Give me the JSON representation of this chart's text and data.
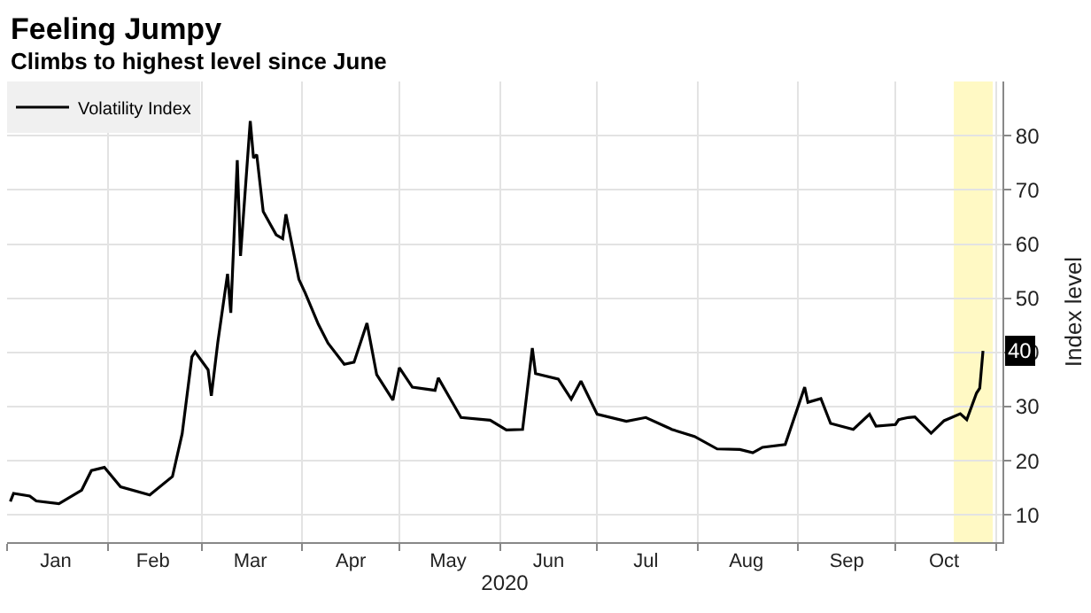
{
  "chart_data": {
    "type": "line",
    "title": "Feeling Jumpy",
    "subtitle": "Climbs to highest level since June",
    "xlabel": "2020",
    "ylabel": "Index level",
    "x": [
      "2020-01-02",
      "2020-01-03",
      "2020-01-08",
      "2020-01-10",
      "2020-01-17",
      "2020-01-24",
      "2020-01-27",
      "2020-01-31",
      "2020-02-05",
      "2020-02-14",
      "2020-02-21",
      "2020-02-24",
      "2020-02-27",
      "2020-02-28",
      "2020-03-03",
      "2020-03-04",
      "2020-03-06",
      "2020-03-09",
      "2020-03-10",
      "2020-03-12",
      "2020-03-13",
      "2020-03-16",
      "2020-03-17",
      "2020-03-18",
      "2020-03-20",
      "2020-03-24",
      "2020-03-26",
      "2020-03-27",
      "2020-03-31",
      "2020-04-02",
      "2020-04-06",
      "2020-04-09",
      "2020-04-14",
      "2020-04-17",
      "2020-04-21",
      "2020-04-24",
      "2020-04-29",
      "2020-05-01",
      "2020-05-05",
      "2020-05-12",
      "2020-05-13",
      "2020-05-20",
      "2020-05-29",
      "2020-06-03",
      "2020-06-08",
      "2020-06-11",
      "2020-06-12",
      "2020-06-19",
      "2020-06-23",
      "2020-06-26",
      "2020-07-01",
      "2020-07-10",
      "2020-07-16",
      "2020-07-23",
      "2020-07-24",
      "2020-07-31",
      "2020-08-07",
      "2020-08-14",
      "2020-08-18",
      "2020-08-21",
      "2020-08-28",
      "2020-09-03",
      "2020-09-04",
      "2020-09-08",
      "2020-09-11",
      "2020-09-18",
      "2020-09-23",
      "2020-09-25",
      "2020-10-01",
      "2020-10-02",
      "2020-10-05",
      "2020-10-07",
      "2020-10-12",
      "2020-10-16",
      "2020-10-21",
      "2020-10-23",
      "2020-10-26",
      "2020-10-27",
      "2020-10-28"
    ],
    "series": [
      {
        "name": "Volatility Index",
        "color": "#000000",
        "values": [
          12.5,
          14.0,
          13.5,
          12.6,
          12.1,
          14.6,
          18.2,
          18.8,
          15.2,
          13.7,
          17.1,
          25.0,
          39.2,
          40.1,
          36.8,
          32.0,
          41.9,
          54.5,
          47.3,
          75.5,
          57.8,
          82.7,
          75.9,
          76.5,
          66.0,
          61.7,
          61.0,
          65.5,
          53.5,
          50.9,
          45.2,
          41.7,
          37.8,
          38.2,
          45.4,
          35.9,
          31.2,
          37.2,
          33.6,
          33.0,
          35.3,
          28.0,
          27.5,
          25.7,
          25.8,
          40.8,
          36.1,
          35.1,
          31.4,
          34.7,
          28.6,
          27.3,
          28.0,
          26.1,
          25.8,
          24.5,
          22.2,
          22.1,
          21.5,
          22.5,
          23.0,
          33.6,
          30.8,
          31.5,
          26.9,
          25.8,
          28.6,
          26.4,
          26.7,
          27.6,
          28.0,
          28.1,
          25.1,
          27.4,
          28.7,
          27.6,
          32.5,
          33.4,
          40.3
        ]
      }
    ],
    "xlim": [
      "2020-01-01",
      "2020-11-03"
    ],
    "xticks": [
      {
        "value": "2020-01-16",
        "label": "Jan"
      },
      {
        "value": "2020-02-15",
        "label": "Feb"
      },
      {
        "value": "2020-03-16",
        "label": "Mar"
      },
      {
        "value": "2020-04-16",
        "label": "Apr"
      },
      {
        "value": "2020-05-16",
        "label": "May"
      },
      {
        "value": "2020-06-16",
        "label": "Jun"
      },
      {
        "value": "2020-07-16",
        "label": "Jul"
      },
      {
        "value": "2020-08-16",
        "label": "Aug"
      },
      {
        "value": "2020-09-16",
        "label": "Sep"
      },
      {
        "value": "2020-10-16",
        "label": "Oct"
      }
    ],
    "ylim": [
      5,
      90
    ],
    "yticks": [
      10,
      20,
      30,
      40,
      50,
      60,
      70,
      80
    ],
    "annotations": [
      {
        "text": "40",
        "x": "2020-10-28",
        "y": 40.3
      }
    ],
    "bands": [
      {
        "axis": "x",
        "from": "2020-10-19",
        "to": "2020-10-31",
        "color": "#fff59d"
      }
    ],
    "grid": true,
    "legend": "top left",
    "marker": "none",
    "line_style": "solid"
  }
}
